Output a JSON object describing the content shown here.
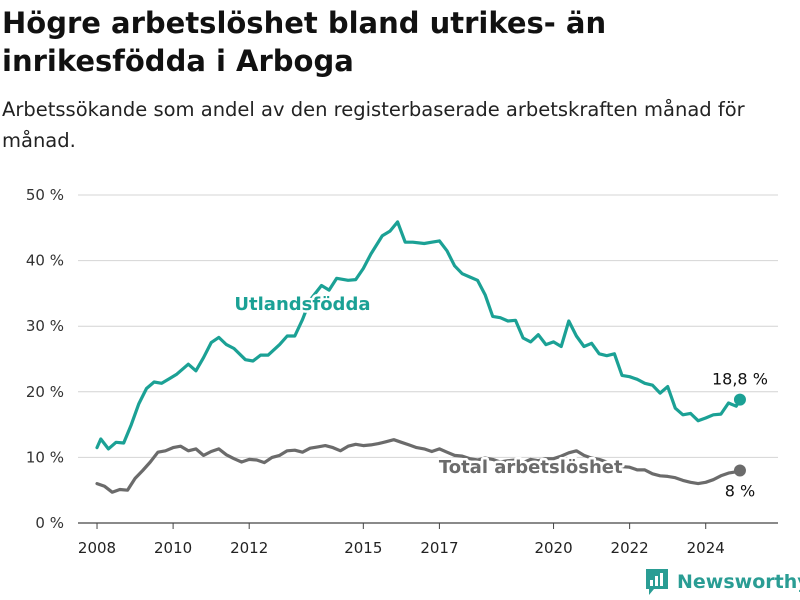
{
  "title": "Högre arbetslöshet bland utrikes- än inrikesfödda i Arboga",
  "subtitle": "Arbetssökande som andel av den registerbaserade arbetskraften månad för månad.",
  "logo": {
    "text": "Newsworthy",
    "icon": "bar-chart-speech-bubble-icon",
    "color": "#2a9d94"
  },
  "chart_data": {
    "type": "line",
    "title": "Högre arbetslöshet bland utrikes- än inrikesfödda i Arboga",
    "xlabel": "",
    "ylabel": "",
    "xlim": [
      2007.5,
      2025.9
    ],
    "ylim": [
      0,
      50
    ],
    "x_ticks": [
      2008,
      2010,
      2012,
      2015,
      2017,
      2020,
      2022,
      2024
    ],
    "x_tick_labels": [
      "2008",
      "2010",
      "2012",
      "2015",
      "2017",
      "2020",
      "2022",
      "2024"
    ],
    "y_ticks": [
      0,
      10,
      20,
      30,
      40,
      50
    ],
    "y_tick_labels": [
      "0 %",
      "10 %",
      "20 %",
      "30 %",
      "40 %",
      "50 %"
    ],
    "grid": "horizontal",
    "series": [
      {
        "name": "Utlandsfödda",
        "color": "#1ba195",
        "end_label": "18,8 %",
        "x": [
          2008.0,
          2008.1,
          2008.3,
          2008.5,
          2008.7,
          2008.9,
          2009.1,
          2009.3,
          2009.5,
          2009.7,
          2009.9,
          2010.1,
          2010.4,
          2010.6,
          2010.8,
          2011.0,
          2011.2,
          2011.4,
          2011.6,
          2011.9,
          2012.1,
          2012.3,
          2012.5,
          2012.8,
          2013.0,
          2013.2,
          2013.4,
          2013.6,
          2013.9,
          2014.1,
          2014.3,
          2014.6,
          2014.8,
          2015.0,
          2015.2,
          2015.5,
          2015.7,
          2015.9,
          2016.1,
          2016.3,
          2016.6,
          2016.8,
          2017.0,
          2017.2,
          2017.4,
          2017.6,
          2017.8,
          2018.0,
          2018.2,
          2018.4,
          2018.6,
          2018.8,
          2019.0,
          2019.2,
          2019.4,
          2019.6,
          2019.8,
          2020.0,
          2020.2,
          2020.4,
          2020.6,
          2020.8,
          2021.0,
          2021.2,
          2021.4,
          2021.6,
          2021.8,
          2022.0,
          2022.2,
          2022.4,
          2022.6,
          2022.8,
          2023.0,
          2023.2,
          2023.4,
          2023.6,
          2023.8,
          2024.0,
          2024.2,
          2024.4,
          2024.6,
          2024.8,
          2024.9
        ],
        "values": [
          11.5,
          12.8,
          11.3,
          12.3,
          12.2,
          15.0,
          18.2,
          20.5,
          21.5,
          21.3,
          22.0,
          22.7,
          24.2,
          23.2,
          25.2,
          27.5,
          28.3,
          27.2,
          26.6,
          24.9,
          24.7,
          25.6,
          25.6,
          27.2,
          28.5,
          28.5,
          31.0,
          34.0,
          36.2,
          35.5,
          37.3,
          37.0,
          37.1,
          38.8,
          41.0,
          43.8,
          44.5,
          45.9,
          42.8,
          42.8,
          42.6,
          42.8,
          43.0,
          41.5,
          39.2,
          38.0,
          37.5,
          37.0,
          34.8,
          31.5,
          31.3,
          30.8,
          30.9,
          28.2,
          27.6,
          28.7,
          27.2,
          27.6,
          26.9,
          30.8,
          28.5,
          26.9,
          27.4,
          25.8,
          25.5,
          25.8,
          22.5,
          22.3,
          21.9,
          21.3,
          21.0,
          19.8,
          20.8,
          17.5,
          16.5,
          16.7,
          15.6,
          16.0,
          16.5,
          16.6,
          18.3,
          17.8,
          18.8
        ]
      },
      {
        "name": "Total arbetslöshet",
        "color": "#6b6b6b",
        "end_label": "8 %",
        "x": [
          2008.0,
          2008.2,
          2008.4,
          2008.6,
          2008.8,
          2009.0,
          2009.2,
          2009.4,
          2009.6,
          2009.8,
          2010.0,
          2010.2,
          2010.4,
          2010.6,
          2010.8,
          2011.0,
          2011.2,
          2011.4,
          2011.6,
          2011.8,
          2012.0,
          2012.2,
          2012.4,
          2012.6,
          2012.8,
          2013.0,
          2013.2,
          2013.4,
          2013.6,
          2013.8,
          2014.0,
          2014.2,
          2014.4,
          2014.6,
          2014.8,
          2015.0,
          2015.2,
          2015.4,
          2015.6,
          2015.8,
          2016.0,
          2016.2,
          2016.4,
          2016.6,
          2016.8,
          2017.0,
          2017.2,
          2017.4,
          2017.6,
          2017.8,
          2018.0,
          2018.2,
          2018.4,
          2018.6,
          2018.8,
          2019.0,
          2019.2,
          2019.4,
          2019.6,
          2019.8,
          2020.0,
          2020.2,
          2020.4,
          2020.6,
          2020.8,
          2021.0,
          2021.2,
          2021.4,
          2021.6,
          2021.8,
          2022.0,
          2022.2,
          2022.4,
          2022.6,
          2022.8,
          2023.0,
          2023.2,
          2023.4,
          2023.6,
          2023.8,
          2024.0,
          2024.2,
          2024.4,
          2024.6,
          2024.8,
          2024.9
        ],
        "values": [
          6.0,
          5.6,
          4.7,
          5.1,
          5.0,
          6.8,
          8.0,
          9.3,
          10.8,
          11.0,
          11.5,
          11.7,
          11.0,
          11.3,
          10.3,
          10.9,
          11.3,
          10.4,
          9.8,
          9.3,
          9.7,
          9.6,
          9.2,
          10.0,
          10.3,
          11.0,
          11.1,
          10.8,
          11.4,
          11.6,
          11.8,
          11.5,
          11.0,
          11.7,
          12.0,
          11.8,
          11.9,
          12.1,
          12.4,
          12.7,
          12.3,
          11.9,
          11.5,
          11.3,
          10.9,
          11.3,
          10.8,
          10.3,
          10.2,
          9.8,
          9.6,
          9.9,
          9.7,
          9.3,
          9.5,
          9.6,
          9.2,
          9.7,
          9.5,
          9.8,
          9.8,
          10.2,
          10.7,
          11.0,
          10.3,
          9.9,
          9.7,
          9.3,
          9.0,
          8.6,
          8.5,
          8.1,
          8.1,
          7.5,
          7.2,
          7.1,
          6.9,
          6.5,
          6.2,
          6.0,
          6.2,
          6.6,
          7.2,
          7.6,
          7.8,
          8.0
        ]
      }
    ]
  }
}
